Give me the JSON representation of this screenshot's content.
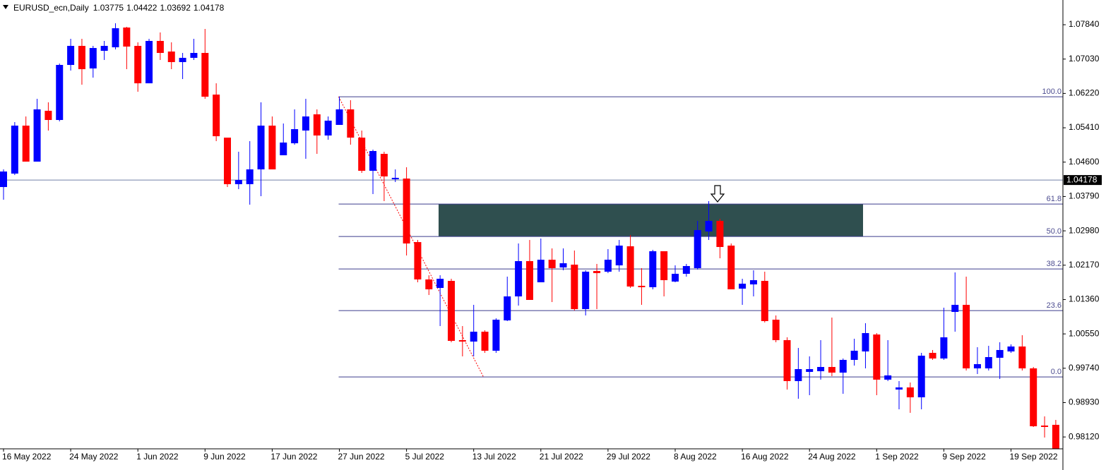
{
  "chart_data": {
    "type": "candlestick",
    "title": "EURUSD_ecn,Daily",
    "header_values": [
      1.03775,
      1.04422,
      1.03692,
      1.04178
    ],
    "categories": [
      "16 May 2022",
      null,
      null,
      null,
      null,
      null,
      "24 May 2022",
      null,
      null,
      null,
      null,
      null,
      "1 Jun 2022",
      null,
      null,
      null,
      null,
      null,
      "9 Jun 2022",
      null,
      null,
      null,
      null,
      null,
      "17 Jun 2022",
      null,
      null,
      null,
      null,
      null,
      "27 Jun 2022",
      null,
      null,
      null,
      null,
      null,
      "5 Jul 2022",
      null,
      null,
      null,
      null,
      null,
      "13 Jul 2022",
      null,
      null,
      null,
      null,
      null,
      "21 Jul 2022",
      null,
      null,
      null,
      null,
      null,
      "29 Jul 2022",
      null,
      null,
      null,
      null,
      null,
      "8 Aug 2022",
      null,
      null,
      null,
      null,
      null,
      "16 Aug 2022",
      null,
      null,
      null,
      null,
      null,
      "24 Aug 2022",
      null,
      null,
      null,
      null,
      null,
      "1 Sep 2022",
      null,
      null,
      null,
      null,
      null,
      "9 Sep 2022",
      null,
      null,
      null,
      null,
      null,
      "19 Sep 2022",
      null,
      null,
      null,
      null
    ],
    "open": [
      1.04013,
      1.0433,
      1.05461,
      1.04612,
      1.05811,
      1.05594,
      1.06892,
      1.07341,
      1.06809,
      1.07225,
      1.07308,
      1.07774,
      1.07341,
      1.06459,
      1.07458,
      1.07208,
      1.06959,
      1.07059,
      1.07175,
      1.06193,
      1.05178,
      1.0408,
      1.0408,
      1.04429,
      1.05461,
      1.04762,
      1.05045,
      1.05345,
      1.05727,
      1.05228,
      1.05478,
      1.05844,
      1.05178,
      1.04396,
      1.04795,
      1.04196,
      1.04213,
      1.02715,
      1.01834,
      1.01634,
      1.018,
      1.00403,
      1.00369,
      1.00602,
      1.00153,
      1.00868,
      1.01434,
      1.02266,
      1.01767,
      1.02299,
      1.02116,
      1.02183,
      1.01135,
      1.02033,
      1.02017,
      1.02166,
      1.02616,
      1.01684,
      1.01651,
      1.02499,
      1.01784,
      1.01967,
      1.021,
      1.02965,
      1.03215,
      1.02632,
      1.01617,
      1.01717,
      1.018,
      1.00885,
      1.00403,
      0.99437,
      0.99654,
      0.9967,
      0.9977,
      0.99637,
      0.99937,
      1.00136,
      1.00536,
      0.99471,
      0.99238,
      0.99288,
      0.99055,
      1.00103,
      0.9997,
      1.01068,
      1.01235,
      0.99737,
      0.99737,
      0.99987,
      1.00136,
      1.00253,
      0.99737,
      0.98389,
      0.98406
    ],
    "high": [
      1.04429,
      1.05544,
      1.05677,
      1.06093,
      1.0601,
      1.06925,
      1.07508,
      1.07508,
      1.07341,
      1.07458,
      1.07874,
      1.07791,
      1.07425,
      1.07508,
      1.07658,
      1.07425,
      1.07175,
      1.07508,
      1.07741,
      1.06459,
      1.05178,
      1.04845,
      1.05095,
      1.0601,
      1.05677,
      1.05511,
      1.05844,
      1.06093,
      1.05844,
      1.05677,
      1.06143,
      1.0606,
      1.05345,
      1.04895,
      1.04845,
      1.04429,
      1.04479,
      1.02765,
      1.01933,
      1.01933,
      1.0185,
      1.00735,
      1.01235,
      1.00635,
      1.00918,
      1.019,
      1.02682,
      1.02765,
      1.02799,
      1.02566,
      1.02566,
      1.02516,
      1.0205,
      1.022,
      1.02549,
      1.02765,
      1.02882,
      1.021,
      1.02532,
      1.02499,
      1.02166,
      1.022,
      1.03215,
      1.03681,
      1.03265,
      1.02682,
      1.0185,
      1.0205,
      1.02017,
      1.00985,
      1.00469,
      1.00219,
      1.0002,
      1.00403,
      1.00935,
      0.9997,
      1.00436,
      1.00802,
      1.00569,
      1.00403,
      0.99437,
      0.99404,
      1.00103,
      1.0017,
      1.01168,
      1.02,
      1.019,
      1.00236,
      1.00269,
      1.00353,
      1.00303,
      1.00519,
      0.9977,
      0.98605,
      0.98522
    ],
    "low": [
      1.03714,
      1.04296,
      1.04612,
      1.04612,
      1.05345,
      1.05561,
      1.06759,
      1.06426,
      1.06593,
      1.07009,
      1.07258,
      1.06792,
      1.0626,
      1.06459,
      1.07009,
      1.06792,
      1.06559,
      1.07009,
      1.06093,
      1.05095,
      1.04013,
      1.03963,
      1.03597,
      1.03797,
      1.04429,
      1.04762,
      1.05012,
      1.04679,
      1.04795,
      1.05128,
      1.05478,
      1.05012,
      1.04346,
      1.03847,
      1.03681,
      1.0413,
      1.02399,
      1.01767,
      1.01467,
      1.00735,
      1.00353,
      1.0002,
      1.0002,
      1.00103,
      1.00103,
      1.00852,
      1.01218,
      1.01351,
      1.01767,
      1.01301,
      1.0205,
      1.01101,
      1.00985,
      1.01135,
      1.01983,
      1.02017,
      1.01634,
      1.01235,
      1.01601,
      1.01434,
      1.01767,
      1.019,
      1.02067,
      1.02765,
      1.02333,
      1.01601,
      1.01235,
      1.01434,
      1.00819,
      1.00353,
      0.99238,
      0.99021,
      0.99105,
      0.99471,
      0.99554,
      0.99138,
      0.99803,
      0.99737,
      0.99105,
      0.99437,
      0.98772,
      0.98689,
      0.98772,
      0.99937,
      0.99937,
      1.00602,
      0.99687,
      0.99604,
      0.99687,
      0.99487,
      1.00103,
      0.99687,
      0.98356,
      0.98106,
      0.97773
    ],
    "close": [
      1.04379,
      1.05461,
      1.04612,
      1.05844,
      1.05594,
      1.06892,
      1.07341,
      1.06792,
      1.07291,
      1.07341,
      1.07757,
      1.07325,
      1.06459,
      1.07458,
      1.07175,
      1.06959,
      1.07059,
      1.07175,
      1.06143,
      1.05211,
      1.0408,
      1.0418,
      1.04429,
      1.05461,
      1.04429,
      1.05062,
      1.05378,
      1.05677,
      1.05228,
      1.05578,
      1.05844,
      1.05178,
      1.04396,
      1.04862,
      1.04263,
      1.0423,
      1.02682,
      1.01834,
      1.01601,
      1.0185,
      1.00386,
      1.00369,
      1.00602,
      1.00153,
      1.00885,
      1.01434,
      1.02266,
      1.01351,
      1.02299,
      1.021,
      1.02216,
      1.01135,
      1.02017,
      1.01983,
      1.02299,
      1.02632,
      1.01667,
      1.01651,
      1.02499,
      1.01817,
      1.01967,
      1.0215,
      1.02998,
      1.03215,
      1.02599,
      1.01601,
      1.01734,
      1.01817,
      1.00852,
      1.00403,
      0.99437,
      0.9972,
      0.9972,
      0.9977,
      0.99637,
      0.99937,
      1.00153,
      1.00569,
      0.99471,
      0.99571,
      0.99288,
      0.99055,
      1.00036,
      0.9997,
      1.00469,
      1.01235,
      0.99737,
      0.99837,
      1.00003,
      1.0017,
      1.00253,
      0.99737,
      0.98372,
      0.98356,
      0.9784
    ],
    "up_color": "#0000ff",
    "down_color": "#ff0000",
    "ylim": [
      0.9784,
      1.08423
    ],
    "yticks": [
      {
        "value": 1.0784,
        "label": "1.07840"
      },
      {
        "value": 1.0703,
        "label": "1.07030"
      },
      {
        "value": 1.0622,
        "label": "1.06220"
      },
      {
        "value": 1.0541,
        "label": "1.05410"
      },
      {
        "value": 1.046,
        "label": "1.04600"
      },
      {
        "value": 1.0379,
        "label": "1.03790"
      },
      {
        "value": 1.0298,
        "label": "1.02980"
      },
      {
        "value": 1.0217,
        "label": "1.02170"
      },
      {
        "value": 1.0136,
        "label": "1.01360"
      },
      {
        "value": 1.0055,
        "label": "1.00550"
      },
      {
        "value": 0.9974,
        "label": "0.99740"
      },
      {
        "value": 0.9893,
        "label": "0.98930"
      },
      {
        "value": 0.9812,
        "label": "0.98120"
      }
    ],
    "current_price": 1.04178,
    "fib_levels": [
      {
        "value": 1.06142,
        "label": "100.0"
      },
      {
        "value": 1.03612,
        "label": "61.8"
      },
      {
        "value": 1.02847,
        "label": "50.0"
      },
      {
        "value": 1.02081,
        "label": "38.2"
      },
      {
        "value": 1.01099,
        "label": "23.6"
      },
      {
        "value": 0.99535,
        "label": "0.0"
      }
    ],
    "zone_color": "#2f4f4f"
  }
}
